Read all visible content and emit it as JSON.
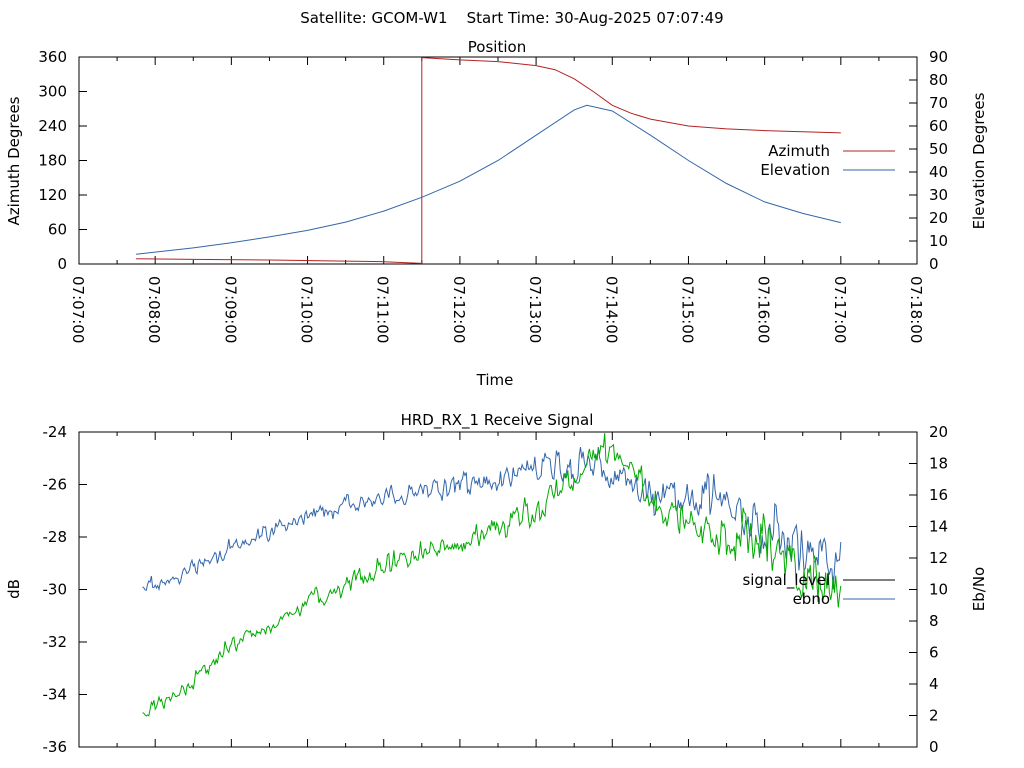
{
  "header": {
    "title": "Satellite: GCOM-W1    Start Time: 30-Aug-2025 07:07:49"
  },
  "colors": {
    "azimuth": "#b22222",
    "elevation": "#3366aa",
    "signal_level": "#000000",
    "ebno_line": "#3366aa",
    "signal_trace": "#3366aa",
    "ebno_trace": "#00aa00"
  },
  "chart_data": [
    {
      "type": "line",
      "title": "Position",
      "xlabel": "Time",
      "ylabel": "Azimuth Degrees",
      "y2label": "Elevation Degrees",
      "xlim": [
        "07:07:00",
        "07:18:00"
      ],
      "ylim": [
        0,
        360
      ],
      "y2lim": [
        0,
        90
      ],
      "xticks": [
        "07:07:00",
        "07:08:00",
        "07:09:00",
        "07:10:00",
        "07:11:00",
        "07:12:00",
        "07:13:00",
        "07:14:00",
        "07:15:00",
        "07:16:00",
        "07:17:00",
        "07:18:00"
      ],
      "yticks": [
        0,
        60,
        120,
        180,
        240,
        300,
        360
      ],
      "y2ticks": [
        0,
        10,
        20,
        30,
        40,
        50,
        60,
        70,
        80,
        90
      ],
      "legend_position": "right",
      "series": [
        {
          "name": "Azimuth",
          "axis": "left",
          "x": [
            "07:07:45",
            "07:08:30",
            "07:09:30",
            "07:10:30",
            "07:11:00",
            "07:11:30",
            "07:11:30",
            "07:11:45",
            "07:12:00",
            "07:12:30",
            "07:13:00",
            "07:13:15",
            "07:13:30",
            "07:13:45",
            "07:14:00",
            "07:14:15",
            "07:14:30",
            "07:15:00",
            "07:15:30",
            "07:16:00",
            "07:16:30",
            "07:17:00"
          ],
          "values": [
            9,
            8,
            7,
            5,
            4,
            1,
            359,
            357,
            355,
            352,
            345,
            338,
            322,
            300,
            276,
            262,
            252,
            240,
            235,
            232,
            230,
            228
          ]
        },
        {
          "name": "Elevation",
          "axis": "right",
          "x": [
            "07:07:45",
            "07:08:30",
            "07:09:00",
            "07:09:30",
            "07:10:00",
            "07:10:30",
            "07:11:00",
            "07:11:30",
            "07:12:00",
            "07:12:30",
            "07:13:00",
            "07:13:30",
            "07:13:40",
            "07:14:00",
            "07:14:30",
            "07:15:00",
            "07:15:30",
            "07:16:00",
            "07:16:30",
            "07:17:00"
          ],
          "values": [
            4.2,
            7,
            9.2,
            11.8,
            14.6,
            18.2,
            23,
            29,
            36,
            45,
            56,
            67,
            69,
            66.5,
            56,
            45,
            35,
            27,
            22,
            18
          ]
        }
      ]
    },
    {
      "type": "line",
      "title": "HRD_RX_1 Receive Signal",
      "xlabel": "",
      "ylabel": "dB",
      "y2label": "Eb/No",
      "xlim": [
        "07:07:00",
        "07:18:00"
      ],
      "ylim": [
        -36,
        -24
      ],
      "y2lim": [
        0,
        20
      ],
      "yticks": [
        -36,
        -34,
        -32,
        -30,
        -28,
        -26,
        -24
      ],
      "y2ticks": [
        0,
        2,
        4,
        6,
        8,
        10,
        12,
        14,
        16,
        18,
        20
      ],
      "legend_position": "right",
      "series": [
        {
          "name": "signal_level",
          "axis": "left",
          "x": [
            "07:07:50",
            "07:08:10",
            "07:08:30",
            "07:09:00",
            "07:09:30",
            "07:10:00",
            "07:10:30",
            "07:11:00",
            "07:11:30",
            "07:12:00",
            "07:12:30",
            "07:13:00",
            "07:13:30",
            "07:13:50",
            "07:14:10",
            "07:14:30",
            "07:15:00",
            "07:15:30",
            "07:16:00",
            "07:16:30",
            "07:17:00"
          ],
          "values": [
            -29.9,
            -29.7,
            -29.2,
            -28.4,
            -27.8,
            -27.2,
            -26.8,
            -26.5,
            -26.2,
            -26.0,
            -25.8,
            -25.4,
            -25.2,
            -25.3,
            -25.8,
            -26.5,
            -26.3,
            -26.8,
            -27.6,
            -28.6,
            -28.8
          ]
        },
        {
          "name": "ebno",
          "axis": "right",
          "x": [
            "07:07:50",
            "07:08:10",
            "07:08:30",
            "07:09:00",
            "07:09:30",
            "07:10:00",
            "07:10:30",
            "07:11:00",
            "07:11:30",
            "07:12:00",
            "07:12:30",
            "07:13:00",
            "07:13:30",
            "07:13:50",
            "07:14:10",
            "07:14:30",
            "07:15:00",
            "07:15:30",
            "07:16:00",
            "07:16:30",
            "07:17:00"
          ],
          "values": [
            2.2,
            3.0,
            4.2,
            6.5,
            7.5,
            9.3,
            10.3,
            11.5,
            12.3,
            13.0,
            13.8,
            15.2,
            17.0,
            18.8,
            18.2,
            16.0,
            14.0,
            13.5,
            13.0,
            11.0,
            9.5
          ]
        }
      ]
    }
  ]
}
